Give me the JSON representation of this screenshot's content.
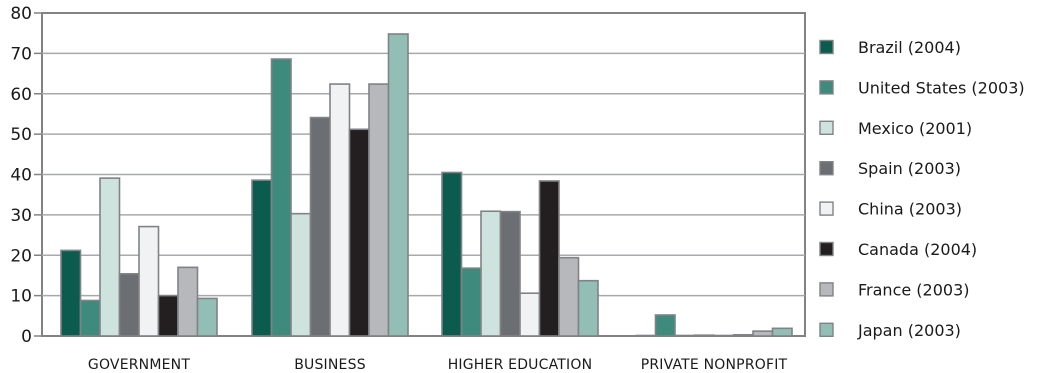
{
  "chart_data": {
    "type": "bar",
    "title": "",
    "xlabel": "",
    "ylabel": "",
    "ylim": [
      0,
      80
    ],
    "yticks": [
      0,
      10,
      20,
      30,
      40,
      50,
      60,
      70,
      80
    ],
    "grid": true,
    "legend_position": "right",
    "categories": [
      "GOVERNMENT",
      "BUSINESS",
      "HIGHER EDUCATION",
      "PRIVATE NONPROFIT"
    ],
    "series": [
      {
        "name": "Brazil (2004)",
        "color": "#0b5c4e",
        "values": [
          21.2,
          38.6,
          40.5,
          0.0
        ]
      },
      {
        "name": "United States (2003)",
        "color": "#3e8a7c",
        "values": [
          8.8,
          68.6,
          16.8,
          5.2
        ]
      },
      {
        "name": "Mexico (2001)",
        "color": "#cfe3de",
        "values": [
          39.1,
          30.3,
          30.9,
          0.0
        ]
      },
      {
        "name": "Spain (2003)",
        "color": "#6b6e72",
        "values": [
          15.4,
          54.1,
          30.8,
          0.2
        ]
      },
      {
        "name": "China (2003)",
        "color": "#f1f2f4",
        "values": [
          27.1,
          62.4,
          10.6,
          0.0
        ]
      },
      {
        "name": "Canada (2004)",
        "color": "#231f20",
        "values": [
          10.0,
          51.2,
          38.4,
          0.3
        ]
      },
      {
        "name": "France (2003)",
        "color": "#b6b8bc",
        "values": [
          17.0,
          62.4,
          19.4,
          1.2
        ]
      },
      {
        "name": "Japan (2003)",
        "color": "#93beb6",
        "values": [
          9.3,
          74.8,
          13.7,
          1.9
        ]
      }
    ]
  }
}
